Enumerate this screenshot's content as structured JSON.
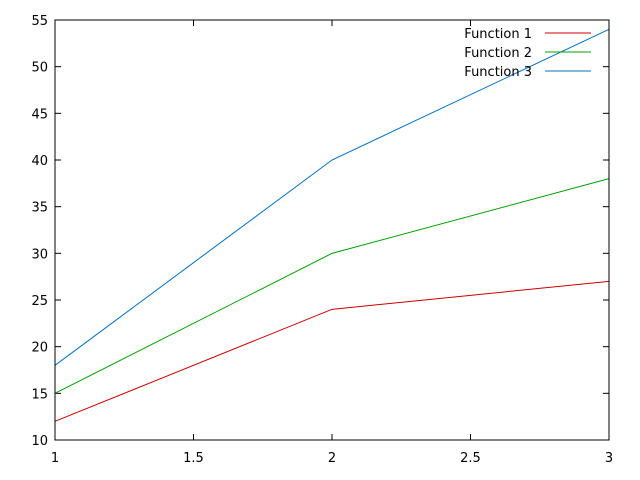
{
  "chart_data": {
    "type": "line",
    "x": [
      1,
      2,
      3
    ],
    "xlim": [
      1,
      3
    ],
    "ylim": [
      10,
      55
    ],
    "x_ticks": [
      1,
      1.5,
      2,
      2.5,
      3
    ],
    "y_ticks": [
      10,
      15,
      20,
      25,
      30,
      35,
      40,
      45,
      50,
      55
    ],
    "grid": false,
    "legend_position": "top-right",
    "series": [
      {
        "name": "Function 1",
        "color": "#cc0000",
        "values": [
          12,
          24,
          27
        ]
      },
      {
        "name": "Function 2",
        "color": "#00a000",
        "values": [
          15,
          30,
          38
        ]
      },
      {
        "name": "Function 3",
        "color": "#0070c0",
        "values": [
          18,
          40,
          54
        ]
      }
    ]
  }
}
